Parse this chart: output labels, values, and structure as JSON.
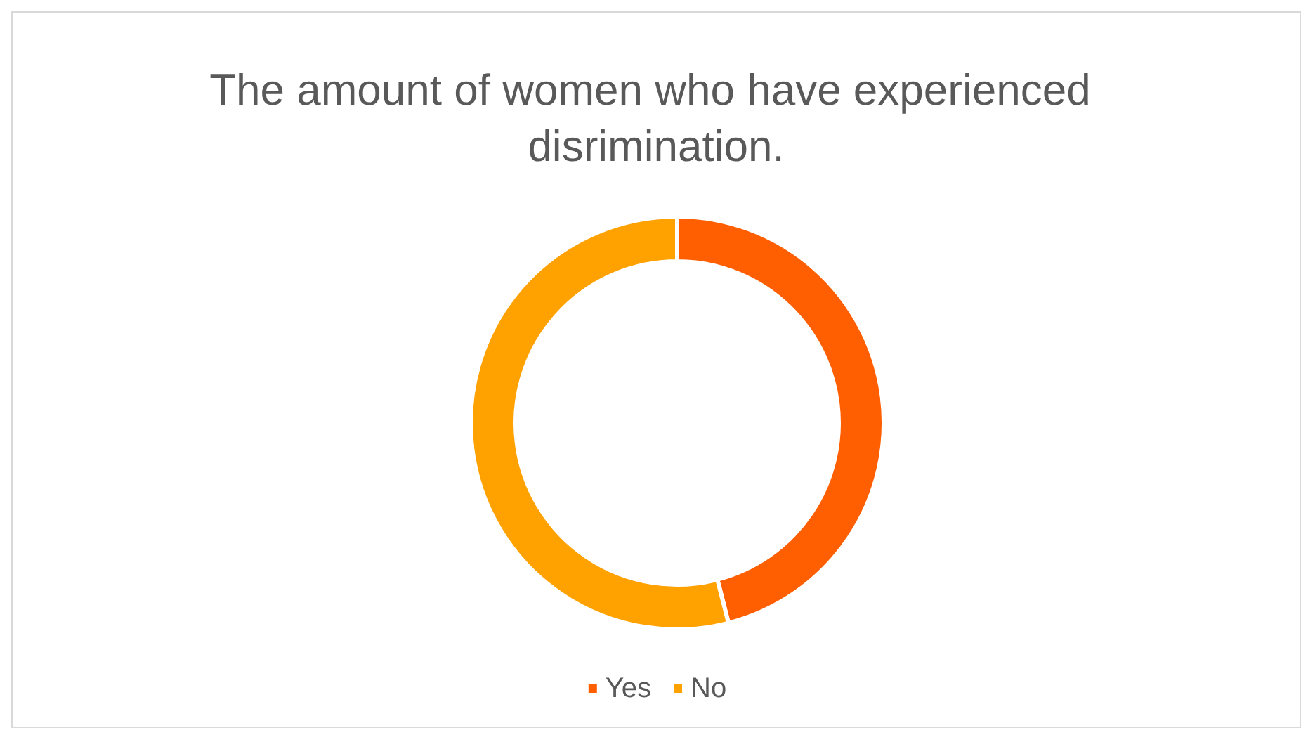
{
  "chart_data": {
    "type": "donut",
    "title": "The amount of women who have experienced disrimination.",
    "categories": [
      "Yes",
      "No"
    ],
    "values": [
      46,
      54
    ],
    "colors": [
      "#ff5f00",
      "#ffa200"
    ],
    "legend": "bottom"
  }
}
